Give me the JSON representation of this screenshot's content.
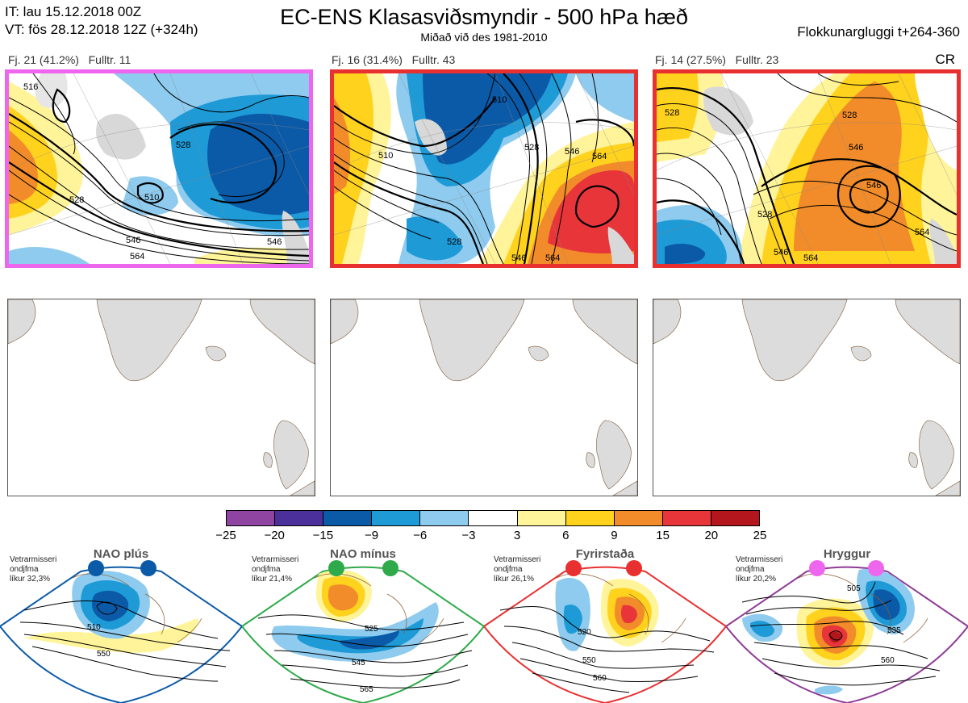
{
  "header": {
    "it_line": "IT: lau 15.12.2018 00Z",
    "vt_line": "VT: fös 28.12.2018 12Z  (+324h)",
    "title": "EC-ENS Klasasviðsmyndir - 500 hPa hæð",
    "subtitle": "Miðað við des 1981-2010",
    "right_label": "Flokkunargluggi t+264-360",
    "cr_label": "CR"
  },
  "clusters": [
    {
      "label": "Fj. 21 (41.2%)",
      "fulltr": "Fulltr. 11",
      "border_color": "#ee66ee",
      "contour_labels": [
        "516",
        "510",
        "528",
        "528",
        "546",
        "546",
        "564"
      ]
    },
    {
      "label": "Fj. 16 (31.4%)",
      "fulltr": "Fulltr. 43",
      "border_color": "#e83030",
      "contour_labels": [
        "510",
        "510",
        "528",
        "546",
        "564",
        "528",
        "546",
        "564"
      ]
    },
    {
      "label": "Fj. 14 (27.5%)",
      "fulltr": "Fulltr. 23",
      "border_color": "#e83030",
      "contour_labels": [
        "528",
        "546",
        "546",
        "528",
        "528",
        "546",
        "564",
        "564"
      ]
    }
  ],
  "colorbar": {
    "colors": [
      "#8e44a0",
      "#4b2f9a",
      "#0b5aa8",
      "#1e9ad6",
      "#8ecbee",
      "#ffffff",
      "#fff49a",
      "#ffd21e",
      "#f28c2a",
      "#e8353a",
      "#b3161c"
    ],
    "ticks": [
      "−25",
      "−20",
      "−15",
      "−9",
      "−6",
      "−3",
      "3",
      "6",
      "9",
      "15",
      "20",
      "25"
    ]
  },
  "regimes": [
    {
      "name": "NAO plús",
      "note": [
        "Vetrarmisseri",
        "ondjfma",
        "líkur 32,3%"
      ],
      "color": "#0b5aa8",
      "dot_color": "#0b5aa8",
      "contour_labels": [
        "510",
        "550"
      ]
    },
    {
      "name": "NAO mínus",
      "note": [
        "Vetrarmisseri",
        "ondjfma",
        "líkur 21,4%"
      ],
      "color": "#2eaa4a",
      "dot_color": "#2eaa4a",
      "contour_labels": [
        "525",
        "545",
        "565"
      ]
    },
    {
      "name": "Fyrirstaða",
      "note": [
        "Vetrarmisseri",
        "ondjfma",
        "líkur 26,1%"
      ],
      "color": "#e83030",
      "dot_color": "#e83030",
      "contour_labels": [
        "520",
        "550",
        "560"
      ]
    },
    {
      "name": "Hryggur",
      "note": [
        "Vetrarmisseri",
        "ondjfma",
        "líkur 20,2%"
      ],
      "color": "#8e3a96",
      "dot_color": "#ee66ee",
      "contour_labels": [
        "505",
        "535",
        "560"
      ]
    }
  ]
}
